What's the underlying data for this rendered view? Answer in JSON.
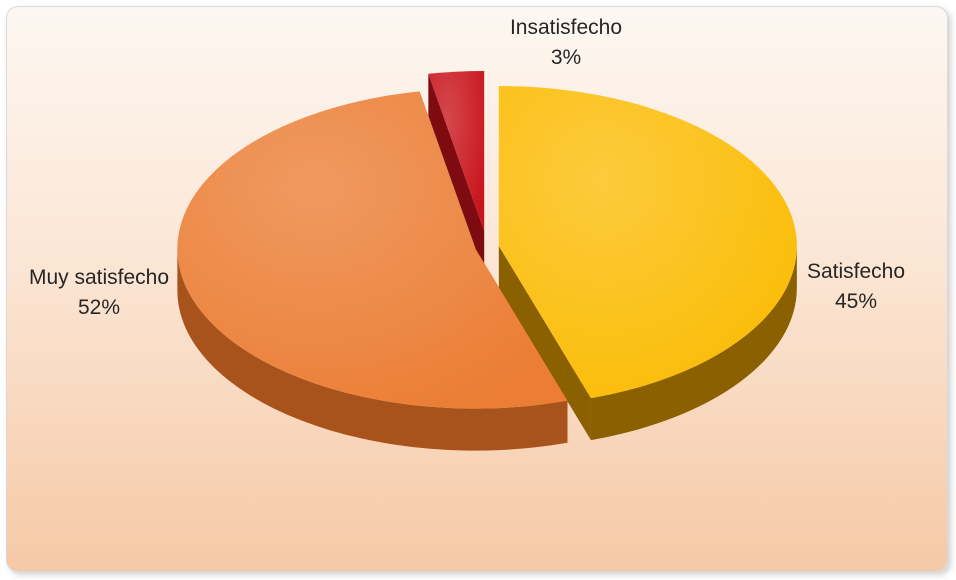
{
  "chart_data": {
    "type": "pie",
    "style": "3d-exploded",
    "title": "",
    "legend": "none",
    "slices": [
      {
        "label": "Satisfecho",
        "value": 45,
        "percent_label": "45%",
        "color": "#FBBC05",
        "dark": "#8a6000"
      },
      {
        "label": "Muy satisfecho",
        "value": 52,
        "percent_label": "52%",
        "color": "#EB7D34",
        "dark": "#a9531c"
      },
      {
        "label": "Insatisfecho",
        "value": 3,
        "percent_label": "3%",
        "color": "#C8141B",
        "dark": "#7d0b0f"
      }
    ]
  },
  "colors": {
    "background_top": "#fdf7f2",
    "background_bottom": "#f6c9a6",
    "border": "#d9d9d9"
  }
}
